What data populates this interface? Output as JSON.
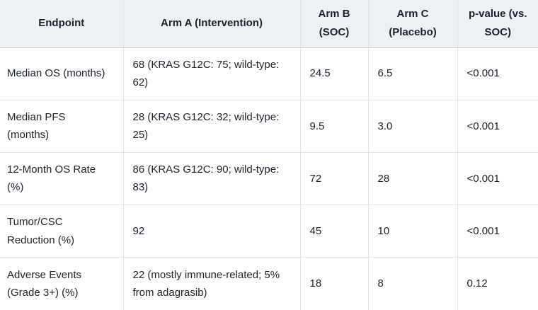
{
  "table": {
    "name": "trial-results-table",
    "columns": [
      {
        "label": "Endpoint"
      },
      {
        "label": "Arm A (Intervention)"
      },
      {
        "label": "Arm B (SOC)"
      },
      {
        "label": "Arm C (Placebo)"
      },
      {
        "label": "p-value (vs. SOC)"
      }
    ],
    "rows": [
      {
        "cells": [
          "Median OS (months)",
          "68 (KRAS G12C: 75; wild-type: 62)",
          "24.5",
          "6.5",
          "<0.001"
        ]
      },
      {
        "cells": [
          "Median PFS (months)",
          "28 (KRAS G12C: 32; wild-type: 25)",
          "9.5",
          "3.0",
          "<0.001"
        ]
      },
      {
        "cells": [
          "12-Month OS Rate (%)",
          "86 (KRAS G12C: 90; wild-type: 83)",
          "72",
          "28",
          "<0.001"
        ]
      },
      {
        "cells": [
          "Tumor/CSC Reduction (%)",
          "92",
          "45",
          "10",
          "<0.001"
        ]
      },
      {
        "cells": [
          "Adverse Events (Grade 3+) (%)",
          "22 (mostly immune-related; 5% from adagrasib)",
          "18",
          "8",
          "0.12"
        ]
      }
    ]
  },
  "colors": {
    "header_bg": "#eef1f3",
    "header_border": "#ccd4da",
    "body_border": "#dfe5e9",
    "text": "#1a222e",
    "page_bg": "#ffffff"
  }
}
